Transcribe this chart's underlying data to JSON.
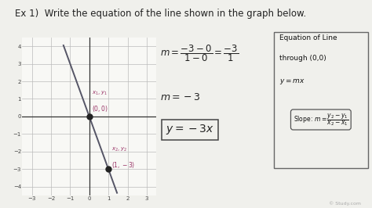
{
  "background_color": "#f0f0ec",
  "graph_bg": "#ffffff",
  "title_text": "Ex 1)  Write the equation of the line shown in the graph below.",
  "title_fontsize": 8.5,
  "title_color": "#222222",
  "graph_xlim": [
    -3.5,
    3.5
  ],
  "graph_ylim": [
    -4.5,
    4.5
  ],
  "graph_xticks": [
    -3,
    -2,
    -1,
    0,
    1,
    2,
    3
  ],
  "graph_yticks": [
    -4,
    -3,
    -2,
    -1,
    0,
    1,
    2,
    3,
    4
  ],
  "line_color": "#555566",
  "line_width": 1.4,
  "point_color": "#222222",
  "point_size": 25,
  "label1_color": "#993366",
  "label2_color": "#993366",
  "math_color": "#222222",
  "box_color": "#444444",
  "watermark": "© Study.com"
}
